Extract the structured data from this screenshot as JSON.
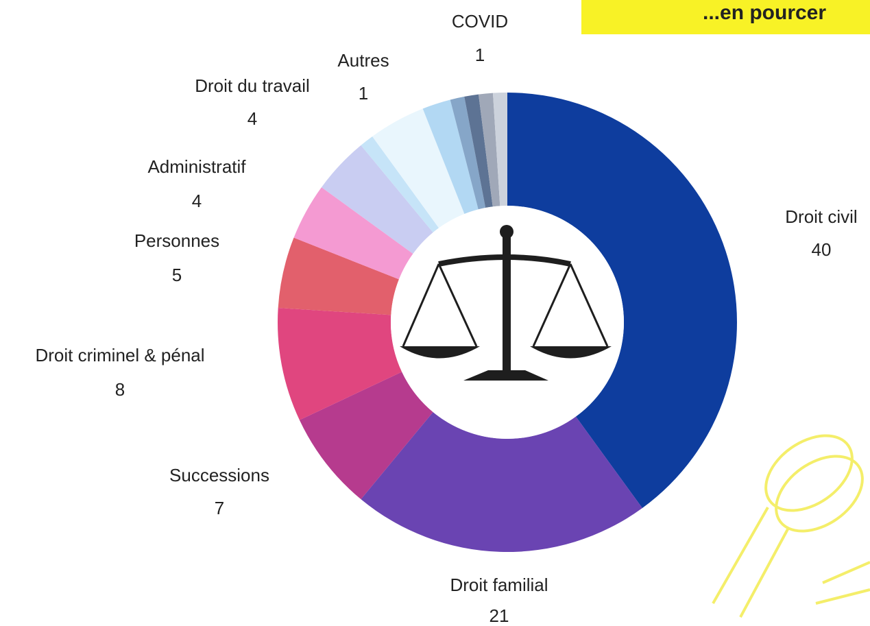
{
  "chart_data": {
    "type": "pie",
    "banner": "...en pourcer",
    "categories": [
      "Droit civil",
      "Droit familial",
      "Successions",
      "Droit criminel & pénal",
      "Personnes",
      null,
      "Administratif",
      null,
      "Droit du travail",
      null,
      null,
      null,
      "COVID",
      "Autres"
    ],
    "values": [
      40,
      21,
      7,
      8,
      5,
      4,
      4,
      1,
      4,
      2,
      1,
      1,
      1,
      1
    ],
    "colors": [
      "#0e3d9e",
      "#6a44b2",
      "#b63b8e",
      "#e0467f",
      "#e2606c",
      "#f49ad2",
      "#c9cdf2",
      "#c6e4f8",
      "#e9f6fd",
      "#b2d8f3",
      "#86a6c8",
      "#5d7394",
      "#a0a8b8",
      "#ccd2dc"
    ]
  }
}
